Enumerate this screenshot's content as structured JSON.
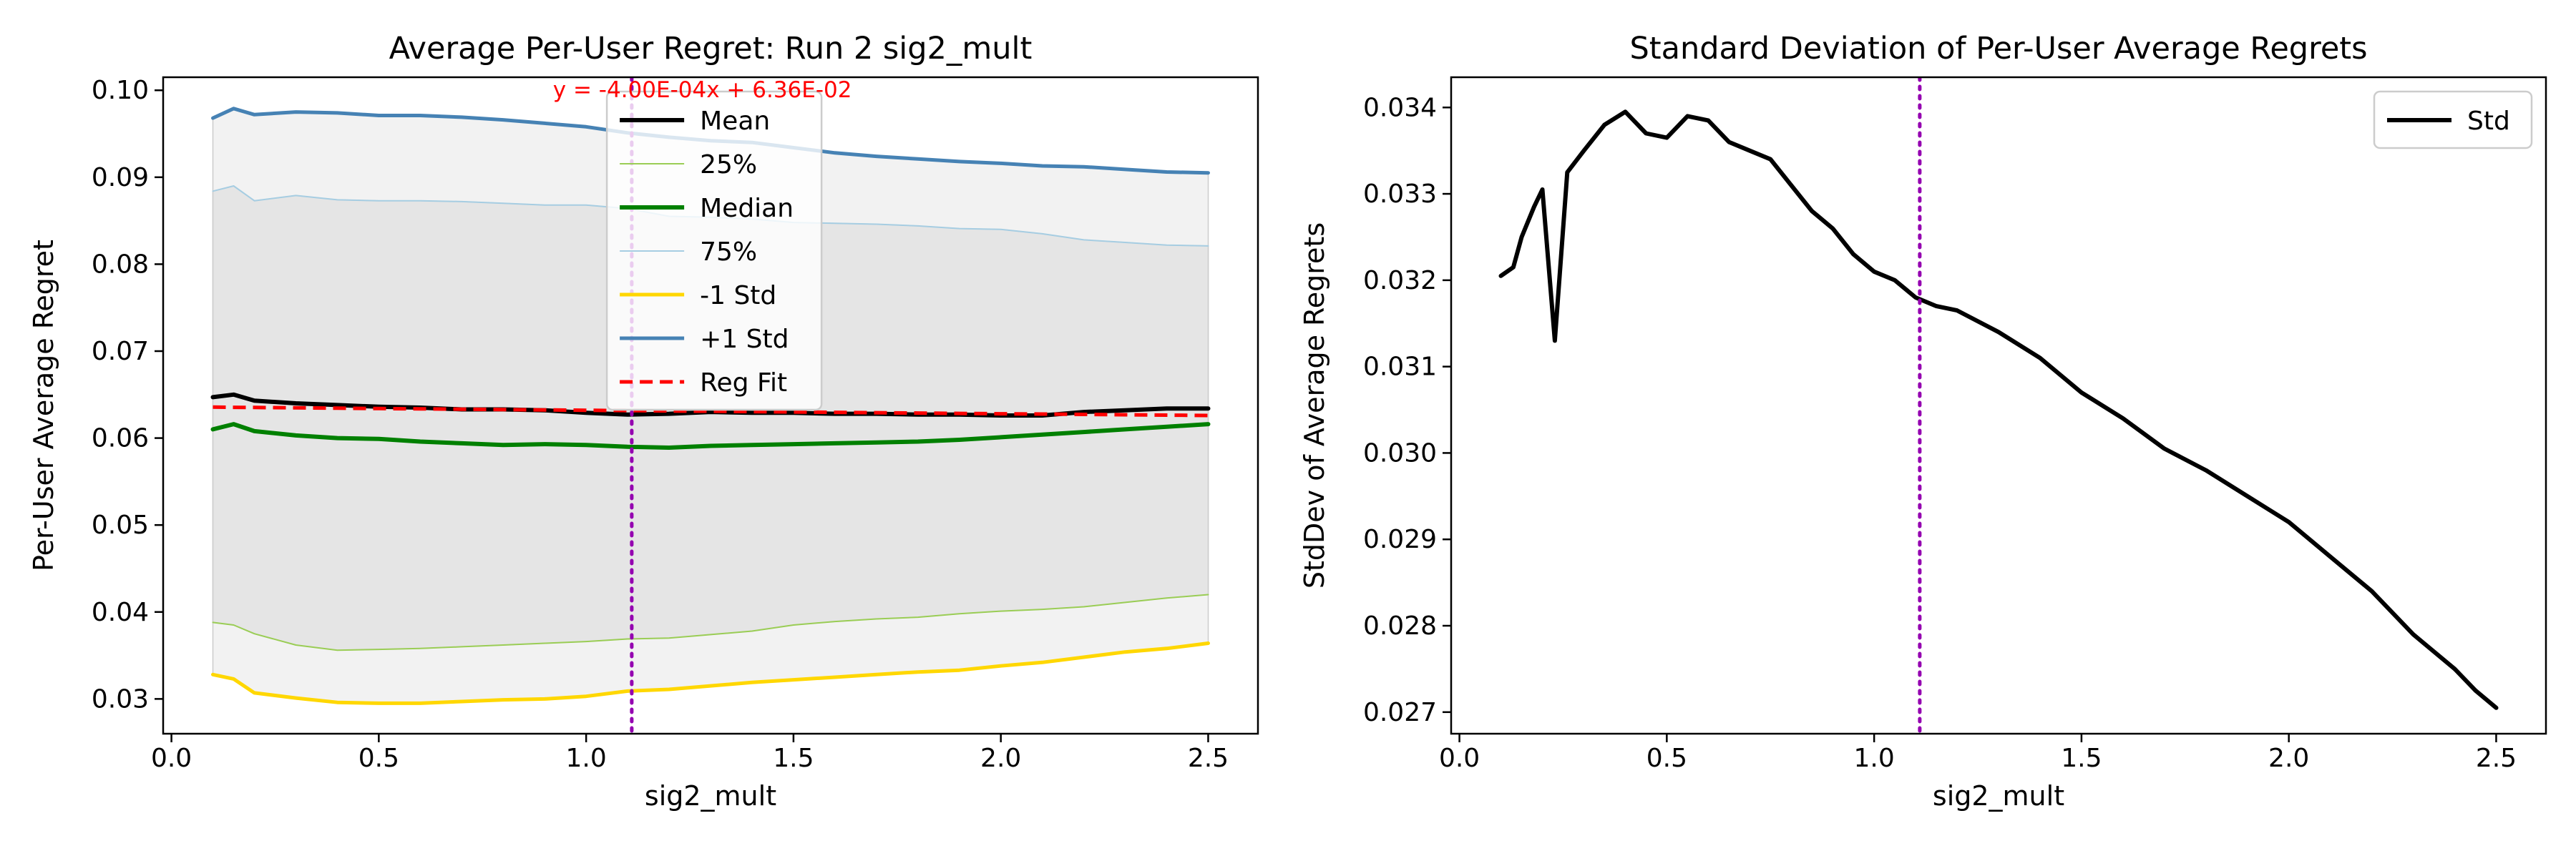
{
  "chart_data": [
    {
      "type": "line",
      "title": "Average Per-User Regret: Run 2 sig2_mult",
      "xlabel": "sig2_mult",
      "ylabel": "Per-User Average Regret",
      "xlim": [
        -0.02,
        2.62
      ],
      "ylim": [
        0.026,
        0.1015
      ],
      "xticks": [
        0.0,
        0.5,
        1.0,
        1.5,
        2.0,
        2.5
      ],
      "xtick_labels": [
        "0.0",
        "0.5",
        "1.0",
        "1.5",
        "2.0",
        "2.5"
      ],
      "yticks": [
        0.03,
        0.04,
        0.05,
        0.06,
        0.07,
        0.08,
        0.09,
        0.1
      ],
      "ytick_labels": [
        "0.03",
        "0.04",
        "0.05",
        "0.06",
        "0.07",
        "0.08",
        "0.09",
        "0.10"
      ],
      "grid": false,
      "legend_position": "top-center",
      "annotation": "y = -4.00E-04x + 6.36E-02",
      "annotation_color": "#ff0000",
      "vline_x": 1.11,
      "vline_color": "#9400b0",
      "x": [
        0.1,
        0.15,
        0.2,
        0.3,
        0.4,
        0.5,
        0.6,
        0.7,
        0.8,
        0.9,
        1.0,
        1.1,
        1.2,
        1.3,
        1.4,
        1.5,
        1.6,
        1.7,
        1.8,
        1.9,
        2.0,
        2.1,
        2.2,
        2.3,
        2.4,
        2.5
      ],
      "series": [
        {
          "name": "Mean",
          "color": "#000000",
          "width": 6,
          "dash": "",
          "values": [
            0.0647,
            0.065,
            0.0643,
            0.064,
            0.0638,
            0.0636,
            0.0635,
            0.0633,
            0.0633,
            0.0632,
            0.0629,
            0.0627,
            0.0628,
            0.063,
            0.0629,
            0.0629,
            0.0628,
            0.0628,
            0.0627,
            0.0627,
            0.0626,
            0.0626,
            0.063,
            0.0632,
            0.0634,
            0.0634
          ]
        },
        {
          "name": "25%",
          "color": "#9acd55",
          "width": 2,
          "dash": "",
          "values": [
            0.0388,
            0.0385,
            0.0375,
            0.0362,
            0.0356,
            0.0357,
            0.0358,
            0.036,
            0.0362,
            0.0364,
            0.0366,
            0.0369,
            0.037,
            0.0374,
            0.0378,
            0.0385,
            0.0389,
            0.0392,
            0.0394,
            0.0398,
            0.0401,
            0.0403,
            0.0406,
            0.0411,
            0.0416,
            0.042
          ]
        },
        {
          "name": "Median",
          "color": "#008000",
          "width": 6,
          "dash": "",
          "values": [
            0.061,
            0.0616,
            0.0608,
            0.0603,
            0.06,
            0.0599,
            0.0596,
            0.0594,
            0.0592,
            0.0593,
            0.0592,
            0.059,
            0.0589,
            0.0591,
            0.0592,
            0.0593,
            0.0594,
            0.0595,
            0.0596,
            0.0598,
            0.0601,
            0.0604,
            0.0607,
            0.061,
            0.0613,
            0.0616
          ]
        },
        {
          "name": "75%",
          "color": "#a6cde2",
          "width": 2,
          "dash": "",
          "values": [
            0.0884,
            0.089,
            0.0873,
            0.0879,
            0.0874,
            0.0873,
            0.0873,
            0.0872,
            0.087,
            0.0868,
            0.0868,
            0.0864,
            0.0855,
            0.0854,
            0.0852,
            0.0848,
            0.0847,
            0.0846,
            0.0844,
            0.0841,
            0.084,
            0.0835,
            0.0828,
            0.0825,
            0.0822,
            0.0821
          ]
        },
        {
          "name": "-1 Std",
          "color": "#ffd700",
          "width": 5,
          "dash": "",
          "values": [
            0.0328,
            0.0323,
            0.0307,
            0.0301,
            0.0296,
            0.0295,
            0.0295,
            0.0297,
            0.0299,
            0.03,
            0.0303,
            0.0309,
            0.0311,
            0.0315,
            0.0319,
            0.0322,
            0.0325,
            0.0328,
            0.0331,
            0.0333,
            0.0338,
            0.0342,
            0.0348,
            0.0354,
            0.0358,
            0.0364
          ]
        },
        {
          "name": "+1 Std",
          "color": "#4682b4",
          "width": 5,
          "dash": "",
          "values": [
            0.0968,
            0.0979,
            0.0972,
            0.0975,
            0.0974,
            0.0971,
            0.0971,
            0.0969,
            0.0966,
            0.0962,
            0.0958,
            0.0951,
            0.0946,
            0.0942,
            0.094,
            0.0934,
            0.0928,
            0.0924,
            0.0921,
            0.0918,
            0.0916,
            0.0913,
            0.0912,
            0.0909,
            0.0906,
            0.0905
          ]
        },
        {
          "name": "Reg Fit",
          "color": "#ff0000",
          "width": 5,
          "dash": "18,10",
          "values": [
            0.06356,
            0.06354,
            0.06352,
            0.06348,
            0.06344,
            0.0634,
            0.06336,
            0.06332,
            0.06328,
            0.06324,
            0.0632,
            0.06316,
            0.06312,
            0.06308,
            0.06304,
            0.063,
            0.06296,
            0.06292,
            0.06288,
            0.06284,
            0.0628,
            0.06276,
            0.06272,
            0.06268,
            0.06264,
            0.0626
          ]
        }
      ],
      "bands": [
        {
          "lower": "-1 Std",
          "upper": "+1 Std",
          "color": "#f2f2f2"
        },
        {
          "lower": "25%",
          "upper": "75%",
          "color": "#e5e5e5"
        }
      ]
    },
    {
      "type": "line",
      "title": "Standard Deviation of Per-User Average Regrets",
      "xlabel": "sig2_mult",
      "ylabel": "StdDev of Average Regrets",
      "xlim": [
        -0.02,
        2.62
      ],
      "ylim": [
        0.02675,
        0.03435
      ],
      "xticks": [
        0.0,
        0.5,
        1.0,
        1.5,
        2.0,
        2.5
      ],
      "xtick_labels": [
        "0.0",
        "0.5",
        "1.0",
        "1.5",
        "2.0",
        "2.5"
      ],
      "yticks": [
        0.027,
        0.028,
        0.029,
        0.03,
        0.031,
        0.032,
        0.033,
        0.034
      ],
      "ytick_labels": [
        "0.027",
        "0.028",
        "0.029",
        "0.030",
        "0.031",
        "0.032",
        "0.033",
        "0.034"
      ],
      "grid": false,
      "legend_position": "top-right",
      "vline_x": 1.11,
      "vline_color": "#9400b0",
      "x": [
        0.1,
        0.13,
        0.15,
        0.18,
        0.2,
        0.23,
        0.26,
        0.3,
        0.35,
        0.4,
        0.45,
        0.5,
        0.55,
        0.6,
        0.65,
        0.7,
        0.75,
        0.8,
        0.85,
        0.9,
        0.95,
        1.0,
        1.05,
        1.1,
        1.15,
        1.2,
        1.3,
        1.4,
        1.5,
        1.6,
        1.7,
        1.8,
        1.9,
        2.0,
        2.1,
        2.2,
        2.3,
        2.4,
        2.45,
        2.5
      ],
      "series": [
        {
          "name": "Std",
          "color": "#000000",
          "width": 6,
          "dash": "",
          "values": [
            0.03205,
            0.03215,
            0.0325,
            0.03285,
            0.03305,
            0.0313,
            0.03325,
            0.0335,
            0.0338,
            0.03395,
            0.0337,
            0.03365,
            0.0339,
            0.03385,
            0.0336,
            0.0335,
            0.0334,
            0.0331,
            0.0328,
            0.0326,
            0.0323,
            0.0321,
            0.032,
            0.0318,
            0.0317,
            0.03165,
            0.0314,
            0.0311,
            0.0307,
            0.0304,
            0.03005,
            0.0298,
            0.0295,
            0.0292,
            0.0288,
            0.0284,
            0.0279,
            0.0275,
            0.02725,
            0.02705
          ]
        }
      ]
    }
  ]
}
